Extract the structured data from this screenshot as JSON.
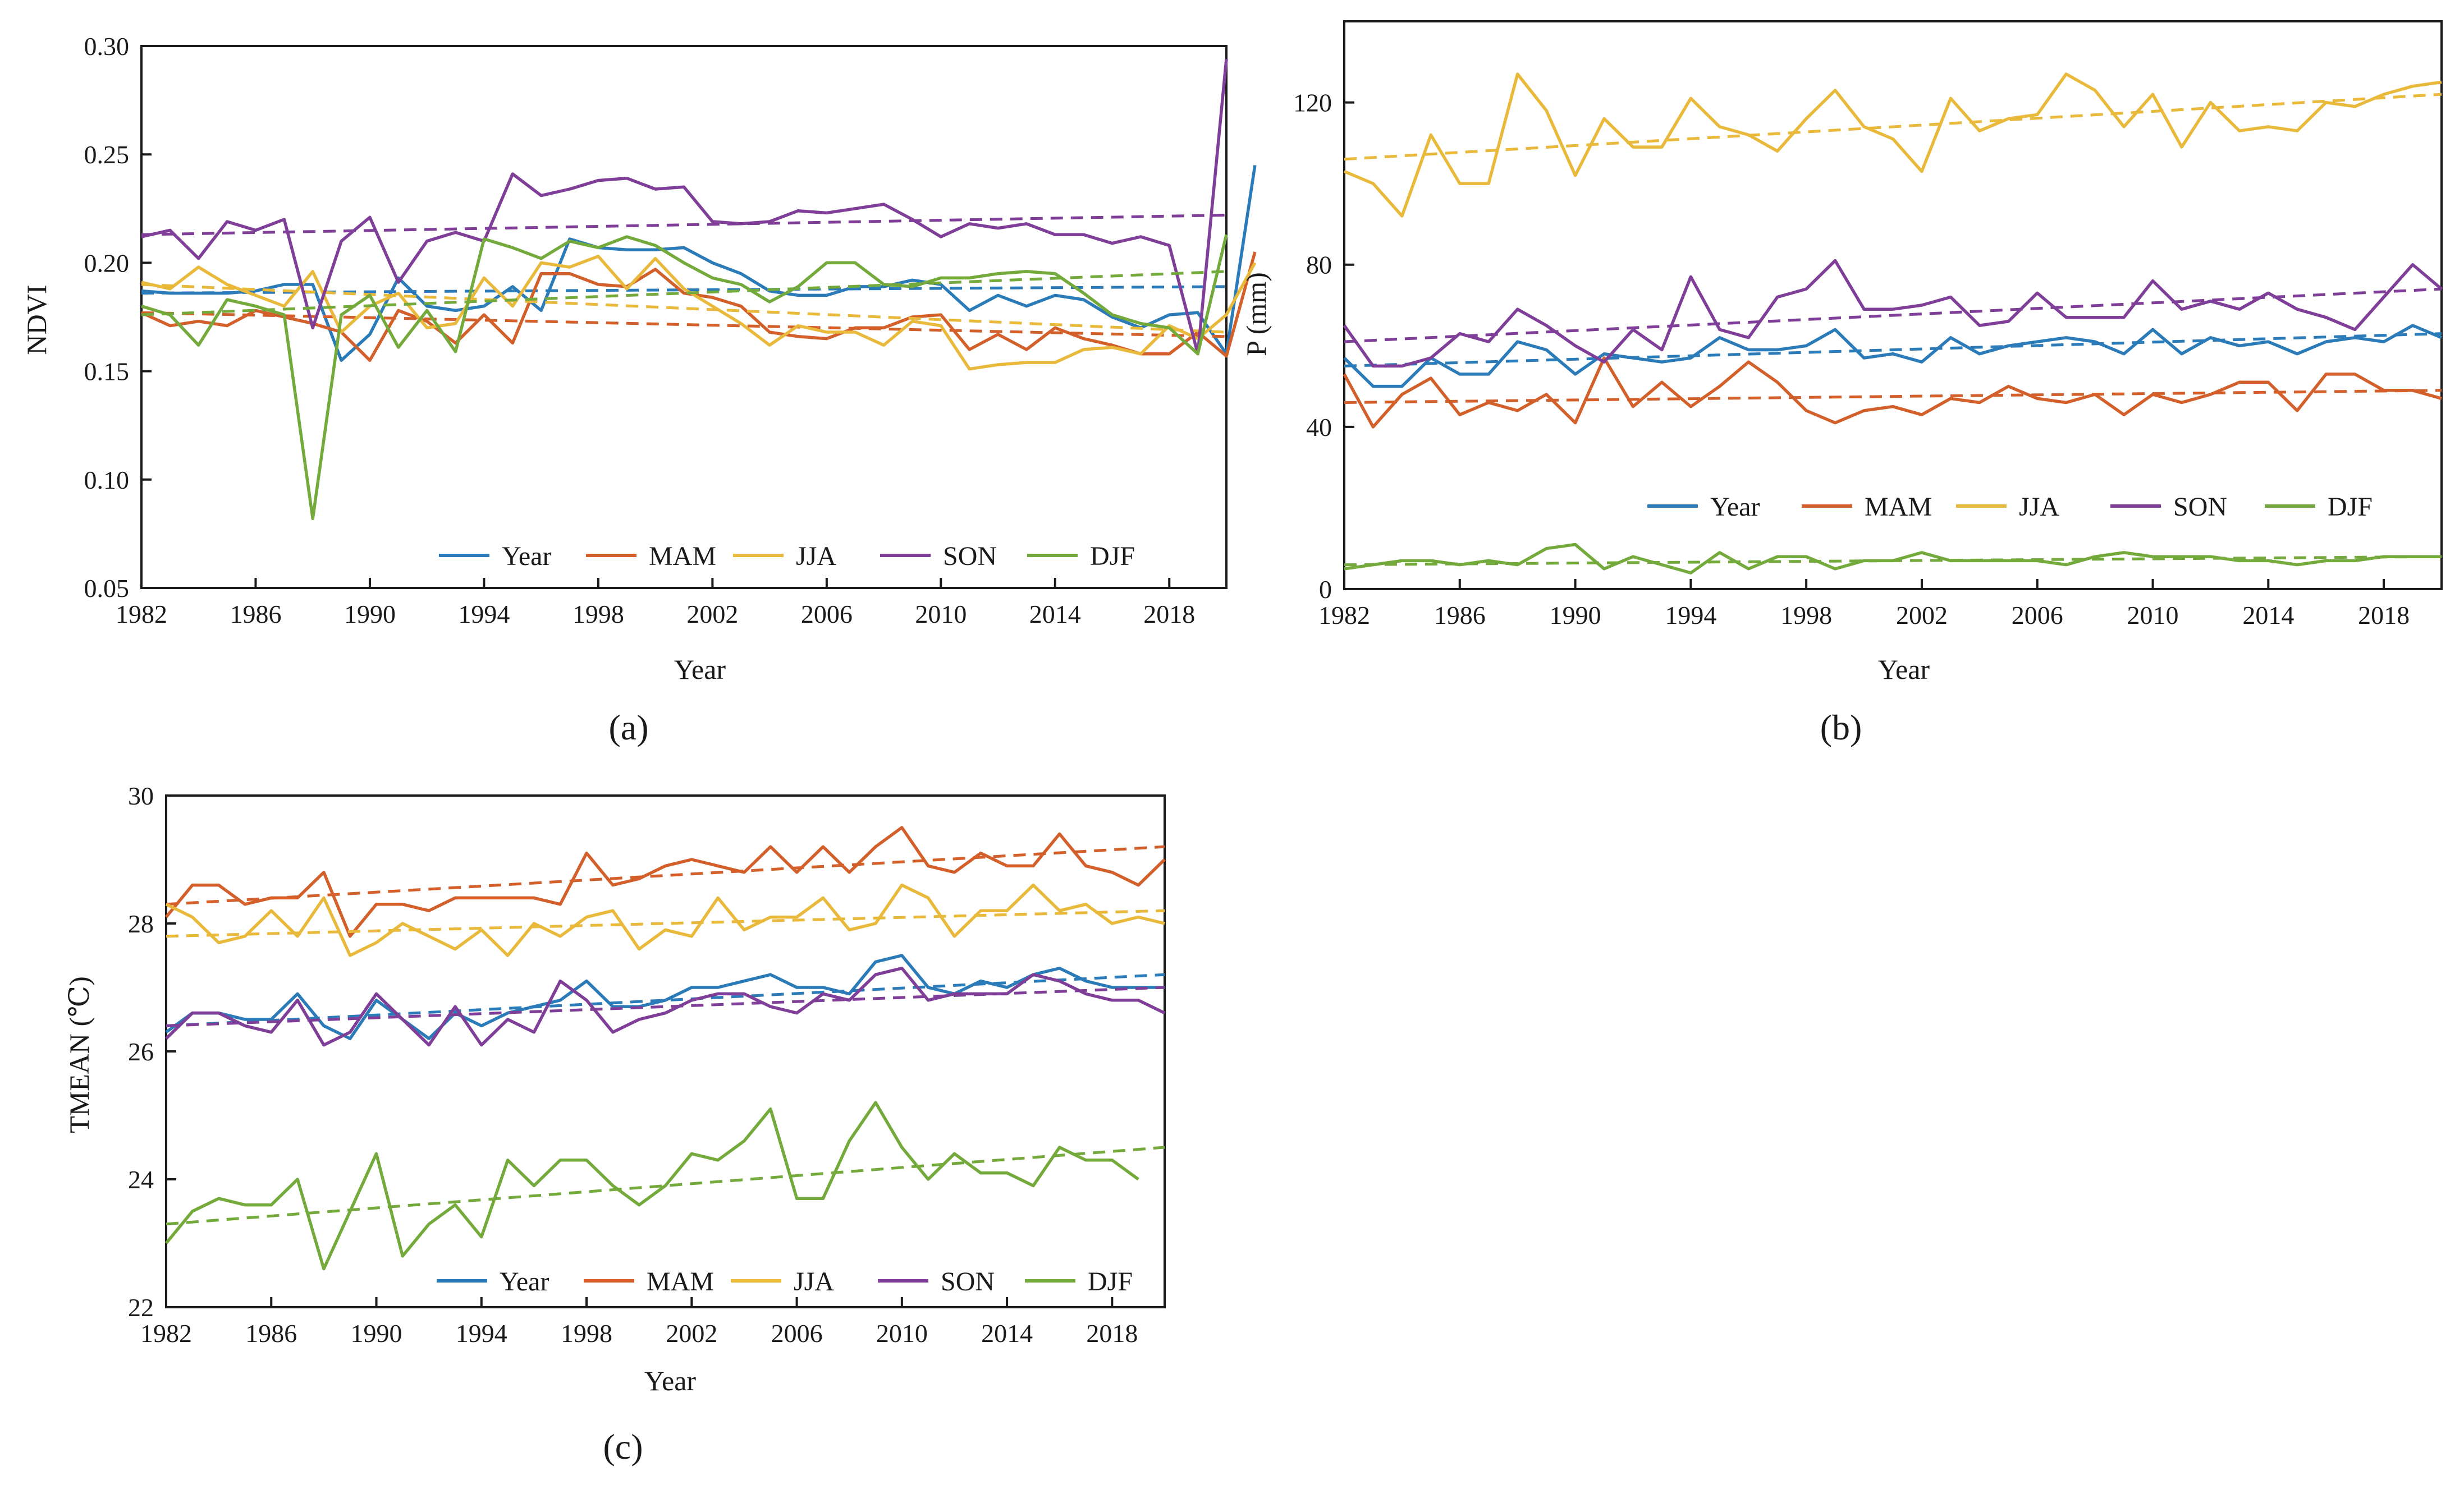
{
  "colors": {
    "Year": "#2b7bb9",
    "MAM": "#d35f2a",
    "JJA": "#e8b93a",
    "SON": "#7f3f98",
    "DJF": "#74aa3c"
  },
  "chart_data": [
    {
      "panel": "a",
      "panel_label": "(a)",
      "type": "line",
      "title": "",
      "xlabel": "Year",
      "ylabel": "NDVI",
      "xlim": [
        1982,
        2020
      ],
      "ylim": [
        0.05,
        0.3
      ],
      "xticks": [
        1982,
        1986,
        1990,
        1994,
        1998,
        2002,
        2006,
        2010,
        2014,
        2018
      ],
      "xtick_labels": [
        "1982",
        "1986",
        "1990",
        "1994",
        "1998",
        "2002",
        "2006",
        "2010",
        "2014",
        "2018"
      ],
      "yticks": [
        0.05,
        0.1,
        0.15,
        0.2,
        0.25,
        0.3
      ],
      "ytick_labels": [
        "0.05",
        "0.10",
        "0.15",
        "0.20",
        "0.25",
        "0.30"
      ],
      "legend_position": "bottom-right",
      "x_start": 1982,
      "series": [
        {
          "name": "Year",
          "trend": [
            0.186,
            0.189
          ],
          "values": [
            0.187,
            0.186,
            0.186,
            0.186,
            0.187,
            0.19,
            0.19,
            0.155,
            0.167,
            0.193,
            0.18,
            0.178,
            0.18,
            0.189,
            0.178,
            0.211,
            0.207,
            0.206,
            0.206,
            0.207,
            0.2,
            0.195,
            0.187,
            0.185,
            0.185,
            0.189,
            0.189,
            0.192,
            0.19,
            0.178,
            0.185,
            0.18,
            0.185,
            0.183,
            0.175,
            0.17,
            0.176,
            0.177,
            0.158,
            0.245
          ]
        },
        {
          "name": "MAM",
          "trend": [
            0.177,
            0.166
          ],
          "values": [
            0.177,
            0.171,
            0.173,
            0.171,
            0.178,
            0.175,
            0.172,
            0.168,
            0.155,
            0.178,
            0.173,
            0.163,
            0.176,
            0.163,
            0.195,
            0.195,
            0.19,
            0.189,
            0.197,
            0.186,
            0.184,
            0.18,
            0.168,
            0.166,
            0.165,
            0.17,
            0.17,
            0.175,
            0.176,
            0.16,
            0.167,
            0.16,
            0.17,
            0.165,
            0.162,
            0.158,
            0.158,
            0.168,
            0.157,
            0.205
          ]
        },
        {
          "name": "JJA",
          "trend": [
            0.19,
            0.168
          ],
          "values": [
            0.191,
            0.188,
            0.198,
            0.19,
            0.185,
            0.18,
            0.196,
            0.168,
            0.18,
            0.186,
            0.17,
            0.172,
            0.193,
            0.18,
            0.2,
            0.198,
            0.203,
            0.188,
            0.202,
            0.188,
            0.18,
            0.172,
            0.162,
            0.171,
            0.168,
            0.168,
            0.162,
            0.173,
            0.171,
            0.151,
            0.153,
            0.154,
            0.154,
            0.16,
            0.161,
            0.158,
            0.171,
            0.165,
            0.176,
            0.2
          ]
        },
        {
          "name": "SON",
          "trend": [
            0.213,
            0.222
          ],
          "values": [
            0.212,
            0.215,
            0.202,
            0.219,
            0.215,
            0.22,
            0.17,
            0.21,
            0.221,
            0.191,
            0.21,
            0.214,
            0.21,
            0.241,
            0.231,
            0.234,
            0.238,
            0.239,
            0.234,
            0.235,
            0.219,
            0.218,
            0.219,
            0.224,
            0.223,
            0.225,
            0.227,
            0.22,
            0.212,
            0.218,
            0.216,
            0.218,
            0.213,
            0.213,
            0.209,
            0.212,
            0.208,
            0.158,
            0.294
          ]
        },
        {
          "name": "DJF",
          "trend": [
            0.176,
            0.196
          ],
          "values": [
            0.18,
            0.176,
            0.162,
            0.183,
            0.18,
            0.176,
            0.082,
            0.176,
            0.185,
            0.161,
            0.178,
            0.159,
            0.211,
            0.207,
            0.202,
            0.21,
            0.207,
            0.212,
            0.208,
            0.2,
            0.193,
            0.19,
            0.182,
            0.189,
            0.2,
            0.2,
            0.19,
            0.189,
            0.193,
            0.193,
            0.195,
            0.196,
            0.195,
            0.186,
            0.176,
            0.172,
            0.17,
            0.158,
            0.213
          ]
        }
      ]
    },
    {
      "panel": "b",
      "panel_label": "(b)",
      "type": "line",
      "title": "",
      "xlabel": "Year",
      "ylabel": "P (mm)",
      "xlim": [
        1982,
        2020
      ],
      "ylim": [
        0,
        140
      ],
      "xticks": [
        1982,
        1986,
        1990,
        1994,
        1998,
        2002,
        2006,
        2010,
        2014,
        2018
      ],
      "xtick_labels": [
        "1982",
        "1986",
        "1990",
        "1994",
        "1998",
        "2002",
        "2006",
        "2010",
        "2014",
        "2018"
      ],
      "yticks": [
        0,
        40,
        80,
        120
      ],
      "ytick_labels": [
        "0",
        "40",
        "80",
        "120"
      ],
      "legend_position": "bottom",
      "x_start": 1982,
      "series": [
        {
          "name": "Year",
          "trend": [
            55,
            63
          ],
          "values": [
            57,
            50,
            50,
            57,
            53,
            53,
            61,
            59,
            53,
            58,
            57,
            56,
            57,
            62,
            59,
            59,
            60,
            64,
            57,
            58,
            56,
            62,
            58,
            60,
            61,
            62,
            61,
            58,
            64,
            58,
            62,
            60,
            61,
            58,
            61,
            62,
            61,
            65,
            62
          ]
        },
        {
          "name": "MAM",
          "trend": [
            46,
            49
          ],
          "values": [
            53,
            40,
            48,
            52,
            43,
            46,
            44,
            48,
            41,
            57,
            45,
            51,
            45,
            50,
            56,
            51,
            44,
            41,
            44,
            45,
            43,
            47,
            46,
            50,
            47,
            46,
            48,
            43,
            48,
            46,
            48,
            51,
            51,
            44,
            53,
            53,
            49,
            49,
            47
          ]
        },
        {
          "name": "JJA",
          "trend": [
            106,
            122
          ],
          "values": [
            103,
            100,
            92,
            112,
            100,
            100,
            127,
            118,
            102,
            116,
            109,
            109,
            121,
            114,
            112,
            108,
            116,
            123,
            114,
            111,
            103,
            121,
            113,
            116,
            117,
            127,
            123,
            114,
            122,
            109,
            120,
            113,
            114,
            113,
            120,
            119,
            122,
            124,
            125
          ]
        },
        {
          "name": "SON",
          "trend": [
            61,
            74
          ],
          "values": [
            65,
            55,
            55,
            57,
            63,
            61,
            69,
            65,
            60,
            56,
            64,
            59,
            77,
            64,
            62,
            72,
            74,
            81,
            69,
            69,
            70,
            72,
            65,
            66,
            73,
            67,
            67,
            67,
            76,
            69,
            71,
            69,
            73,
            69,
            67,
            64,
            72,
            80,
            74
          ]
        },
        {
          "name": "DJF",
          "trend": [
            6,
            8
          ],
          "values": [
            5,
            6,
            7,
            7,
            6,
            7,
            6,
            10,
            11,
            5,
            8,
            6,
            4,
            9,
            5,
            8,
            8,
            5,
            7,
            7,
            9,
            7,
            7,
            7,
            7,
            6,
            8,
            9,
            8,
            8,
            8,
            7,
            7,
            6,
            7,
            7,
            8,
            8,
            8
          ]
        }
      ]
    },
    {
      "panel": "c",
      "panel_label": "(c)",
      "type": "line",
      "title": "",
      "xlabel": "Year",
      "ylabel": "TMEAN (℃)",
      "xlim": [
        1982,
        2020
      ],
      "ylim": [
        22,
        30
      ],
      "xticks": [
        1982,
        1986,
        1990,
        1994,
        1998,
        2002,
        2006,
        2010,
        2014,
        2018
      ],
      "xtick_labels": [
        "1982",
        "1986",
        "1990",
        "1994",
        "1998",
        "2002",
        "2006",
        "2010",
        "2014",
        "2018"
      ],
      "yticks": [
        22,
        24,
        26,
        28,
        30
      ],
      "ytick_labels": [
        "22",
        "24",
        "26",
        "28",
        "30"
      ],
      "legend_position": "bottom",
      "x_start": 1982,
      "series": [
        {
          "name": "Year",
          "trend": [
            26.4,
            27.2
          ],
          "values": [
            26.3,
            26.6,
            26.6,
            26.5,
            26.5,
            26.9,
            26.4,
            26.2,
            26.8,
            26.5,
            26.2,
            26.6,
            26.4,
            26.6,
            26.7,
            26.8,
            27.1,
            26.7,
            26.7,
            26.8,
            27.0,
            27.0,
            27.1,
            27.2,
            27.0,
            27.0,
            26.9,
            27.4,
            27.5,
            27.0,
            26.9,
            27.1,
            27.0,
            27.2,
            27.3,
            27.1,
            27.0,
            27.0,
            27.0
          ]
        },
        {
          "name": "MAM",
          "trend": [
            28.3,
            29.2
          ],
          "values": [
            28.1,
            28.6,
            28.6,
            28.3,
            28.4,
            28.4,
            28.8,
            27.8,
            28.3,
            28.3,
            28.2,
            28.4,
            28.4,
            28.4,
            28.4,
            28.3,
            29.1,
            28.6,
            28.7,
            28.9,
            29.0,
            28.9,
            28.8,
            29.2,
            28.8,
            29.2,
            28.8,
            29.2,
            29.5,
            28.9,
            28.8,
            29.1,
            28.9,
            28.9,
            29.4,
            28.9,
            28.8,
            28.6,
            29.0
          ]
        },
        {
          "name": "JJA",
          "trend": [
            27.8,
            28.2
          ],
          "values": [
            28.3,
            28.1,
            27.7,
            27.8,
            28.2,
            27.8,
            28.4,
            27.5,
            27.7,
            28.0,
            27.8,
            27.6,
            27.9,
            27.5,
            28.0,
            27.8,
            28.1,
            28.2,
            27.6,
            27.9,
            27.8,
            28.4,
            27.9,
            28.1,
            28.1,
            28.4,
            27.9,
            28.0,
            28.6,
            28.4,
            27.8,
            28.2,
            28.2,
            28.6,
            28.2,
            28.3,
            28.0,
            28.1,
            28.0
          ]
        },
        {
          "name": "SON",
          "trend": [
            26.4,
            27.0
          ],
          "values": [
            26.2,
            26.6,
            26.6,
            26.4,
            26.3,
            26.8,
            26.1,
            26.3,
            26.9,
            26.5,
            26.1,
            26.7,
            26.1,
            26.5,
            26.3,
            27.1,
            26.8,
            26.3,
            26.5,
            26.6,
            26.8,
            26.9,
            26.9,
            26.7,
            26.6,
            26.9,
            26.8,
            27.2,
            27.3,
            26.8,
            26.9,
            26.9,
            26.9,
            27.2,
            27.1,
            26.9,
            26.8,
            26.8,
            26.6
          ]
        },
        {
          "name": "DJF",
          "trend": [
            23.3,
            24.5
          ],
          "values": [
            23.0,
            23.5,
            23.7,
            23.6,
            23.6,
            24.0,
            22.6,
            23.5,
            24.4,
            22.8,
            23.3,
            23.6,
            23.1,
            24.3,
            23.9,
            24.3,
            24.3,
            23.9,
            23.6,
            23.9,
            24.4,
            24.3,
            24.6,
            25.1,
            23.7,
            23.7,
            24.6,
            25.2,
            24.5,
            24.0,
            24.4,
            24.1,
            24.1,
            23.9,
            24.5,
            24.3,
            24.3,
            24.0
          ]
        }
      ]
    }
  ]
}
